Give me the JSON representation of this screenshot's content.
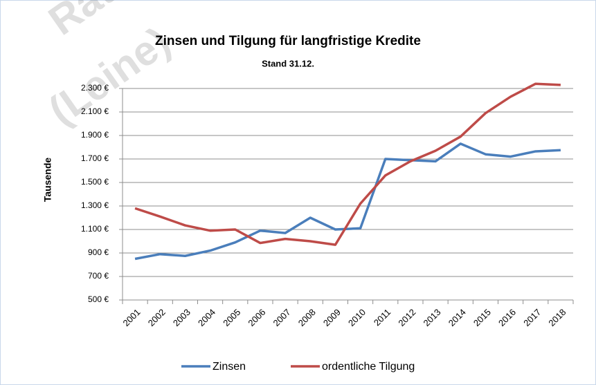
{
  "chart_data": {
    "type": "line",
    "title": "Zinsen und Tilgung für langfristige Kredite",
    "subtitle": "Stand 31.12.",
    "y_label": "Tausende",
    "watermark": [
      "Rat de",
      "(Leine)"
    ],
    "categories": [
      "2001",
      "2002",
      "2003",
      "2004",
      "2005",
      "2006",
      "2007",
      "2008",
      "2009",
      "2010",
      "2011",
      "2012",
      "2013",
      "2014",
      "2015",
      "2016",
      "2017",
      "2018"
    ],
    "series": [
      {
        "name": "Zinsen",
        "color": "#4a7ebb",
        "values": [
          850,
          890,
          875,
          920,
          990,
          1090,
          1070,
          1200,
          1100,
          1110,
          1700,
          1690,
          1680,
          1830,
          1740,
          1720,
          1765,
          1775
        ]
      },
      {
        "name": "ordentliche Tilgung",
        "color": "#be4b48",
        "values": [
          1280,
          1210,
          1135,
          1090,
          1100,
          985,
          1020,
          1000,
          970,
          1320,
          1560,
          1680,
          1770,
          1890,
          2090,
          2230,
          2340,
          2330
        ]
      }
    ],
    "ylim": [
      500,
      2300
    ],
    "yticks": [
      {
        "value": 500,
        "label": "500 €"
      },
      {
        "value": 700,
        "label": "700 €"
      },
      {
        "value": 900,
        "label": "900 €"
      },
      {
        "value": 1100,
        "label": "1.100 €"
      },
      {
        "value": 1300,
        "label": "1.300 €"
      },
      {
        "value": 1500,
        "label": "1.500 €"
      },
      {
        "value": 1700,
        "label": "1.700 €"
      },
      {
        "value": 1900,
        "label": "1.900 €"
      },
      {
        "value": 2100,
        "label": "2.100 €"
      },
      {
        "value": 2300,
        "label": "2.300 €"
      }
    ],
    "grid": true,
    "legend": "bottom"
  }
}
